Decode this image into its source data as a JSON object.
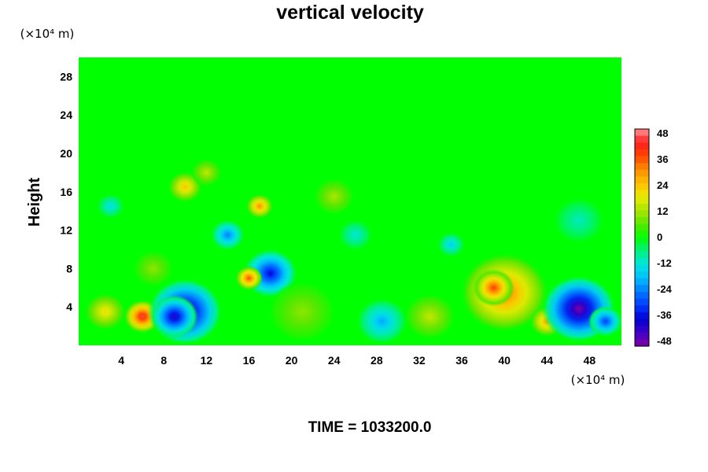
{
  "chart_data": {
    "type": "heatmap",
    "title": "vertical velocity",
    "ylabel": "Height",
    "y_unit": "(×10⁴ m)",
    "x_unit": "(×10⁴ m)",
    "xticks": [
      "4",
      "8",
      "12",
      "16",
      "20",
      "24",
      "28",
      "32",
      "36",
      "40",
      "44",
      "48"
    ],
    "yticks": [
      "4",
      "8",
      "12",
      "16",
      "20",
      "24",
      "28"
    ],
    "xlim": [
      0,
      51
    ],
    "ylim": [
      0,
      30
    ],
    "colorbar": {
      "labels": [
        "48",
        "36",
        "24",
        "12",
        "0",
        "-12",
        "-24",
        "-36",
        "-48"
      ],
      "range": [
        -48,
        48
      ]
    },
    "background_color": "#00ff00",
    "features": [
      {
        "x": 2.5,
        "y": 3.5,
        "value": 20,
        "r": 1.2
      },
      {
        "x": 6.0,
        "y": 3.0,
        "value": 44,
        "r": 1.1
      },
      {
        "x": 10.0,
        "y": 3.5,
        "value": -45,
        "r": 2.2
      },
      {
        "x": 9.0,
        "y": 3.0,
        "value": -40,
        "r": 1.4
      },
      {
        "x": 18.0,
        "y": 7.5,
        "value": -36,
        "r": 1.6
      },
      {
        "x": 16.0,
        "y": 7.0,
        "value": 36,
        "r": 0.8
      },
      {
        "x": 17.0,
        "y": 14.5,
        "value": 30,
        "r": 0.8
      },
      {
        "x": 10.0,
        "y": 16.5,
        "value": 24,
        "r": 1.0
      },
      {
        "x": 14.0,
        "y": 11.5,
        "value": -24,
        "r": 1.0
      },
      {
        "x": 28.5,
        "y": 2.5,
        "value": -20,
        "r": 1.5
      },
      {
        "x": 40.0,
        "y": 5.5,
        "value": 33,
        "r": 2.6
      },
      {
        "x": 39.0,
        "y": 6.0,
        "value": 38,
        "r": 1.2
      },
      {
        "x": 44.0,
        "y": 2.5,
        "value": 28,
        "r": 1.0
      },
      {
        "x": 47.0,
        "y": 3.8,
        "value": -48,
        "r": 2.2
      },
      {
        "x": 49.5,
        "y": 2.5,
        "value": -30,
        "r": 1.0
      },
      {
        "x": 33.0,
        "y": 3.0,
        "value": 14,
        "r": 1.5
      },
      {
        "x": 21.0,
        "y": 3.5,
        "value": 10,
        "r": 2.0
      },
      {
        "x": 3.0,
        "y": 14.5,
        "value": -14,
        "r": 0.8
      },
      {
        "x": 26.0,
        "y": 11.5,
        "value": -12,
        "r": 1.0
      },
      {
        "x": 35.0,
        "y": 10.5,
        "value": -16,
        "r": 0.8
      },
      {
        "x": 7.0,
        "y": 8.0,
        "value": 10,
        "r": 1.2
      },
      {
        "x": 24.0,
        "y": 15.5,
        "value": 12,
        "r": 1.2
      },
      {
        "x": 47.0,
        "y": 13.0,
        "value": -10,
        "r": 1.5
      },
      {
        "x": 12.0,
        "y": 18.0,
        "value": 14,
        "r": 0.9
      }
    ]
  },
  "footer": {
    "time_label": "TIME = 1033200.0"
  }
}
